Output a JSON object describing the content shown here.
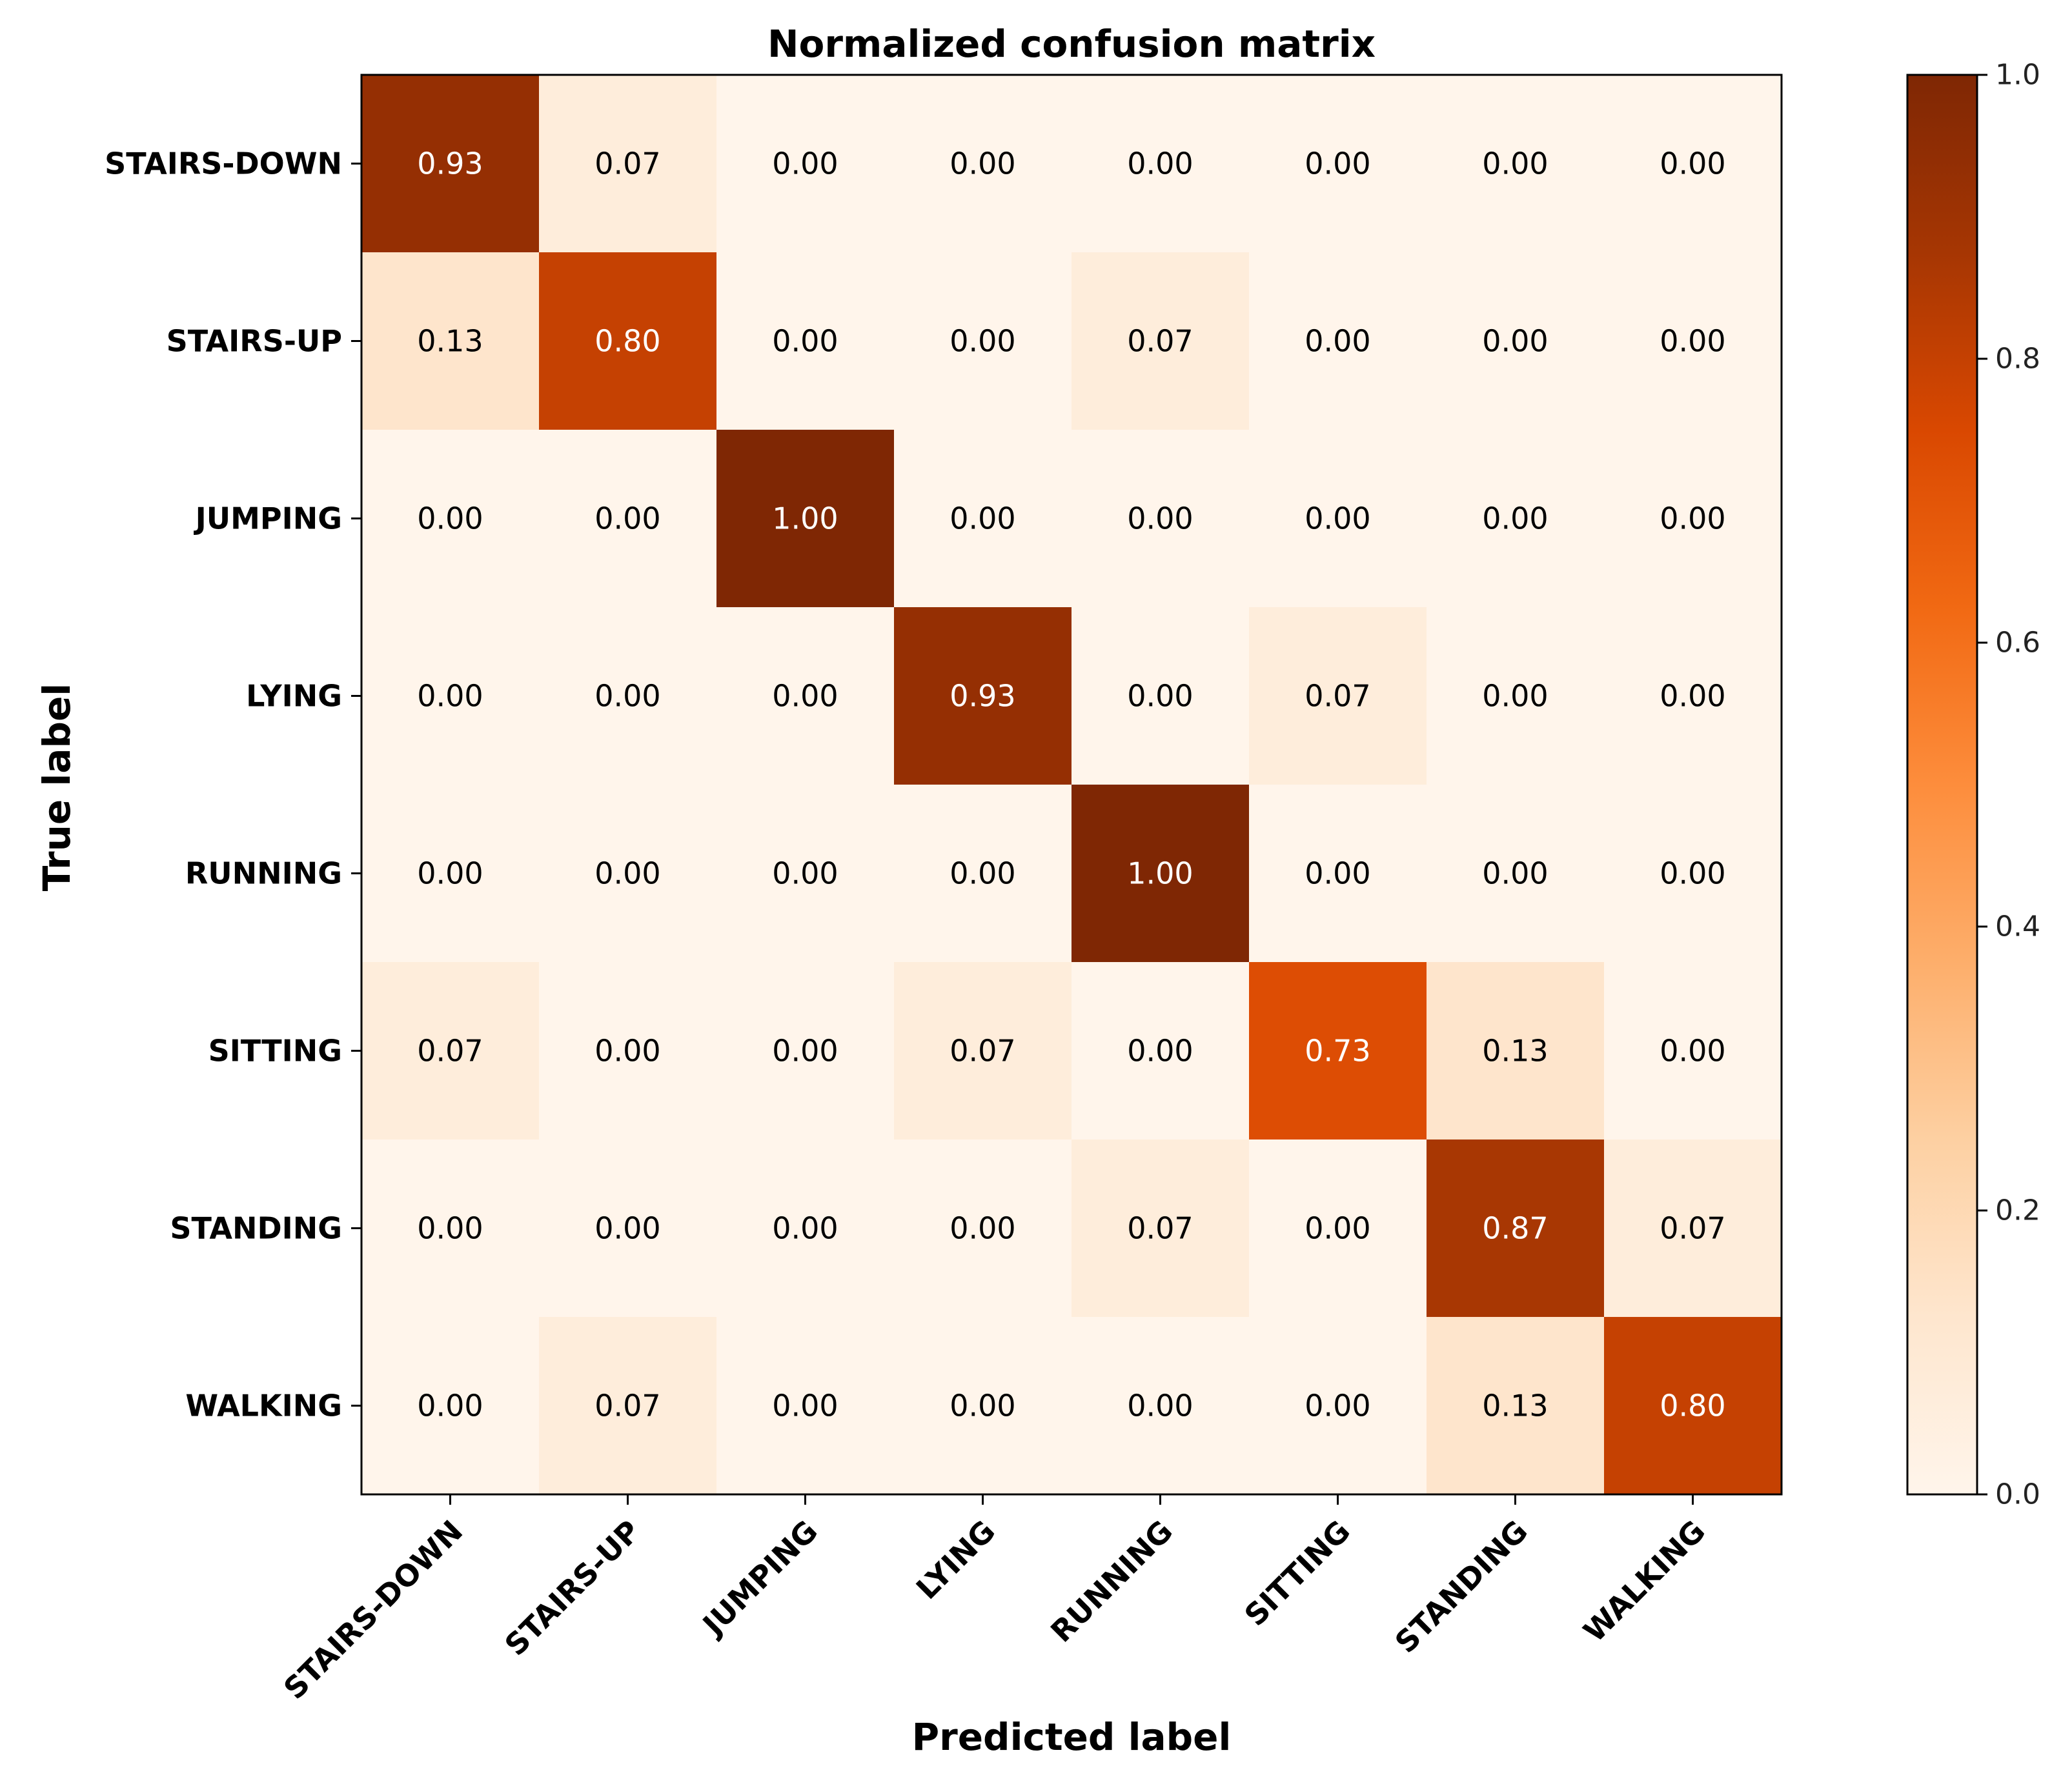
{
  "chart_data": {
    "type": "heatmap",
    "title": "Normalized confusion matrix",
    "xlabel": "Predicted label",
    "ylabel": "True label",
    "x_categories": [
      "STAIRS-DOWN",
      "STAIRS-UP",
      "JUMPING",
      "LYING",
      "RUNNING",
      "SITTING",
      "STANDING",
      "WALKING"
    ],
    "y_categories": [
      "STAIRS-DOWN",
      "STAIRS-UP",
      "JUMPING",
      "LYING",
      "RUNNING",
      "SITTING",
      "STANDING",
      "WALKING"
    ],
    "values": [
      [
        0.93,
        0.07,
        0.0,
        0.0,
        0.0,
        0.0,
        0.0,
        0.0
      ],
      [
        0.13,
        0.8,
        0.0,
        0.0,
        0.07,
        0.0,
        0.0,
        0.0
      ],
      [
        0.0,
        0.0,
        1.0,
        0.0,
        0.0,
        0.0,
        0.0,
        0.0
      ],
      [
        0.0,
        0.0,
        0.0,
        0.93,
        0.0,
        0.07,
        0.0,
        0.0
      ],
      [
        0.0,
        0.0,
        0.0,
        0.0,
        1.0,
        0.0,
        0.0,
        0.0
      ],
      [
        0.07,
        0.0,
        0.0,
        0.07,
        0.0,
        0.73,
        0.13,
        0.0
      ],
      [
        0.0,
        0.0,
        0.0,
        0.0,
        0.07,
        0.0,
        0.87,
        0.07
      ],
      [
        0.0,
        0.07,
        0.0,
        0.0,
        0.0,
        0.0,
        0.13,
        0.8
      ]
    ],
    "value_format": "0.00",
    "colormap": "Oranges",
    "colormap_stops": [
      "#fff5eb",
      "#fee6ce",
      "#fdd0a2",
      "#fdae6b",
      "#fd8d3c",
      "#f16913",
      "#d94801",
      "#a63603",
      "#7f2704"
    ],
    "vmin": 0.0,
    "vmax": 1.0,
    "colorbar_ticks": [
      "0.0",
      "0.2",
      "0.4",
      "0.6",
      "0.8",
      "1.0"
    ],
    "text_threshold": 0.5,
    "text_color_light": "#ffffff",
    "text_color_dark": "#000000"
  }
}
